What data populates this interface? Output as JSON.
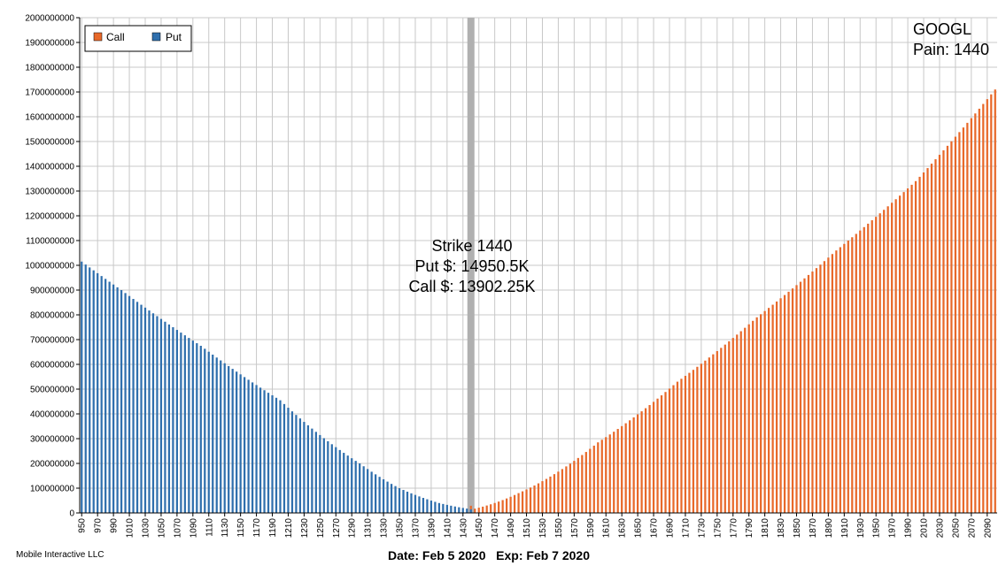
{
  "chart_data": {
    "type": "bar",
    "x_start": 950,
    "x_end": 2100,
    "x_step": 5,
    "ylim": [
      0,
      2000000000
    ],
    "y_ticks": [
      0,
      100000000,
      200000000,
      300000000,
      400000000,
      500000000,
      600000000,
      700000000,
      800000000,
      900000000,
      1000000000,
      1100000000,
      1200000000,
      1300000000,
      1400000000,
      1500000000,
      1600000000,
      1700000000,
      1800000000,
      1900000000,
      2000000000
    ],
    "x_ticks": [
      950,
      970,
      990,
      1010,
      1030,
      1050,
      1070,
      1090,
      1110,
      1130,
      1150,
      1170,
      1190,
      1210,
      1230,
      1250,
      1270,
      1290,
      1310,
      1330,
      1350,
      1370,
      1390,
      1410,
      1430,
      1450,
      1470,
      1490,
      1510,
      1530,
      1550,
      1570,
      1590,
      1610,
      1630,
      1650,
      1670,
      1690,
      1710,
      1730,
      1750,
      1770,
      1790,
      1810,
      1830,
      1850,
      1870,
      1890,
      1910,
      1930,
      1950,
      1970,
      1990,
      2010,
      2030,
      2050,
      2070,
      2090
    ],
    "grid": true,
    "legend_position": "top-left",
    "series": [
      {
        "name": "Call",
        "color": "#e8692a",
        "x": [
          1440,
          1500,
          1600,
          1700,
          1800,
          1900,
          2000,
          2100
        ],
        "values": [
          14000000,
          80000000,
          285000000,
          530000000,
          790000000,
          1060000000,
          1340000000,
          1710000000
        ]
      },
      {
        "name": "Put",
        "color": "#2f6fad",
        "x": [
          950,
          1000,
          1100,
          1200,
          1300,
          1350,
          1400,
          1440
        ],
        "values": [
          1015000000,
          900000000,
          675000000,
          455000000,
          200000000,
          100000000,
          40000000,
          15000000
        ]
      }
    ],
    "highlight_strike": 1440,
    "highlight_color": "#b0b0b0",
    "annotation": [
      "Strike 1440",
      "Put $: 14950.5K",
      "Call $: 13902.25K"
    ],
    "corner_label": [
      "GOOGL",
      "Pain: 1440"
    ]
  },
  "footer": {
    "left": "Mobile Interactive LLC",
    "center": "Date: Feb 5 2020   Exp: Feb 7 2020"
  }
}
